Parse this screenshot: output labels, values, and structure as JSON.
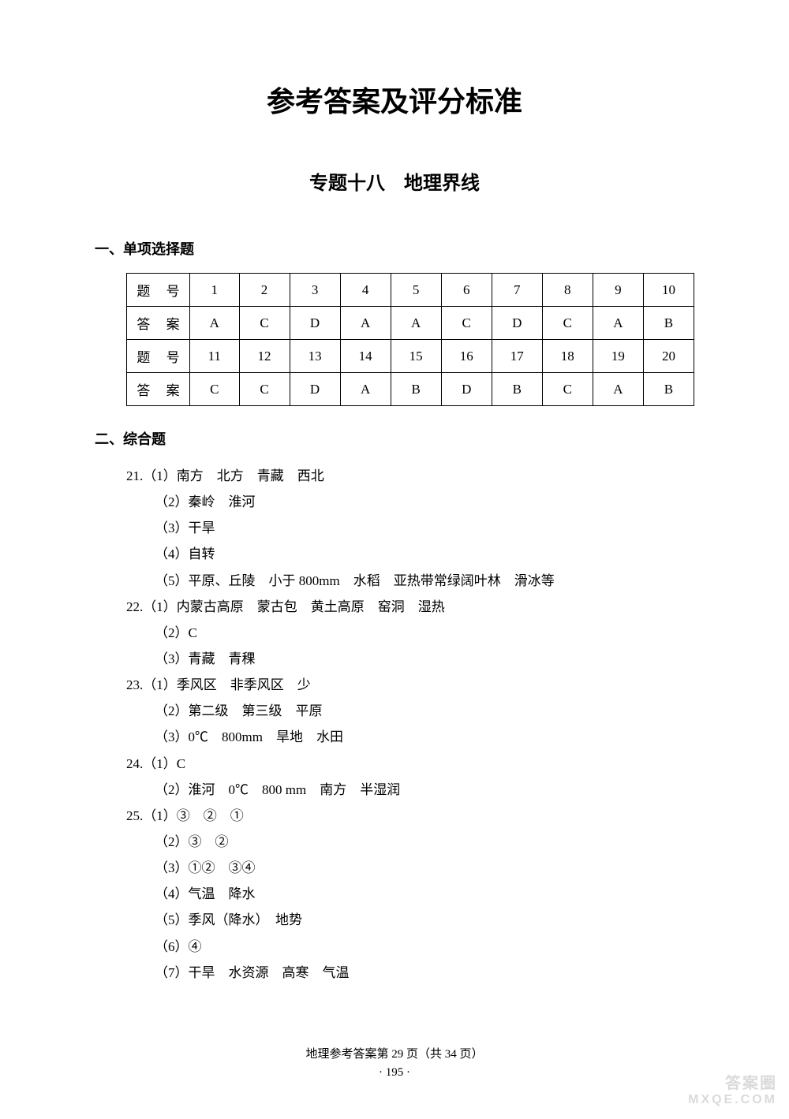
{
  "title": "参考答案及评分标准",
  "subtitle": "专题十八　地理界线",
  "section1": {
    "header": "一、单项选择题",
    "row_label_q": "题 号",
    "row_label_a": "答 案",
    "numbers1": [
      "1",
      "2",
      "3",
      "4",
      "5",
      "6",
      "7",
      "8",
      "9",
      "10"
    ],
    "answers1": [
      "A",
      "C",
      "D",
      "A",
      "A",
      "C",
      "D",
      "C",
      "A",
      "B"
    ],
    "numbers2": [
      "11",
      "12",
      "13",
      "14",
      "15",
      "16",
      "17",
      "18",
      "19",
      "20"
    ],
    "answers2": [
      "C",
      "C",
      "D",
      "A",
      "B",
      "D",
      "B",
      "C",
      "A",
      "B"
    ]
  },
  "section2": {
    "header": "二、综合题",
    "questions": [
      {
        "num": "21.",
        "parts": [
          "（1）南方　北方　青藏　西北",
          "（2）秦岭　淮河",
          "（3）干旱",
          "（4）自转",
          "（5）平原、丘陵　小于 800mm　水稻　亚热带常绿阔叶林　滑冰等"
        ]
      },
      {
        "num": "22.",
        "parts": [
          "（1）内蒙古高原　蒙古包　黄土高原　窑洞　湿热",
          "（2）C",
          "（3）青藏　青稞"
        ]
      },
      {
        "num": "23.",
        "parts": [
          "（1）季风区　非季风区　少",
          "（2）第二级　第三级　平原",
          "（3）0℃　800mm　旱地　水田"
        ]
      },
      {
        "num": "24.",
        "parts": [
          "（1）C",
          "（2）淮河　0℃　800 mm　南方　半湿润"
        ]
      },
      {
        "num": "25.",
        "parts": [
          "（1）③　②　①",
          "（2）③　②",
          "（3）①②　③④",
          "（4）气温　降水",
          "（5）季风（降水）　地势",
          "（6）④",
          "（7）干旱　水资源　高寒　气温"
        ]
      }
    ]
  },
  "footer": {
    "line1": "地理参考答案第 29 页（共 34 页）",
    "line2": "· 195 ·"
  },
  "watermark": {
    "top": "答案圈",
    "bottom": "MXQE.COM"
  },
  "colors": {
    "text": "#000000",
    "background": "#ffffff",
    "border": "#000000"
  }
}
